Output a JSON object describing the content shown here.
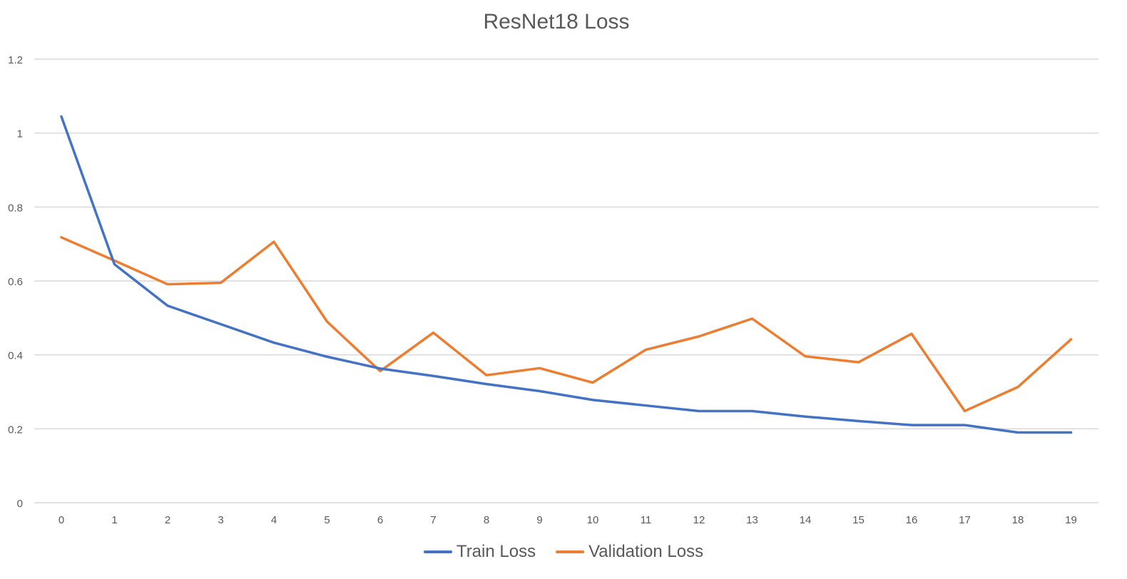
{
  "chart_data": {
    "type": "line",
    "title": "ResNet18 Loss",
    "x": [
      0,
      1,
      2,
      3,
      4,
      5,
      6,
      7,
      8,
      9,
      10,
      11,
      12,
      13,
      14,
      15,
      16,
      17,
      18,
      19
    ],
    "ylim": [
      0,
      1.2
    ],
    "yticks": [
      "0",
      "0.2",
      "0.4",
      "0.6",
      "0.8",
      "1",
      "1.2"
    ],
    "ytick_values": [
      0,
      0.2,
      0.4,
      0.6,
      0.8,
      1.0,
      1.2
    ],
    "grid": true,
    "legend_position": "bottom",
    "series": [
      {
        "name": "Train Loss",
        "color": "#4472C4",
        "values": [
          1.045,
          0.645,
          0.533,
          0.483,
          0.433,
          0.395,
          0.363,
          0.343,
          0.321,
          0.302,
          0.278,
          0.263,
          0.248,
          0.248,
          0.233,
          0.221,
          0.21,
          0.21,
          0.19,
          0.19
        ]
      },
      {
        "name": "Validation Loss",
        "color": "#ED7D31",
        "values": [
          0.718,
          0.655,
          0.591,
          0.595,
          0.706,
          0.49,
          0.356,
          0.46,
          0.345,
          0.364,
          0.325,
          0.414,
          0.45,
          0.498,
          0.396,
          0.38,
          0.457,
          0.248,
          0.313,
          0.442
        ]
      }
    ]
  }
}
